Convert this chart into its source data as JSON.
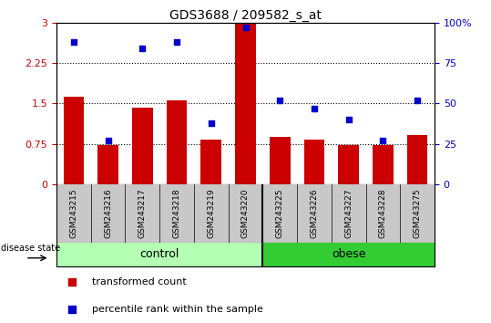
{
  "title": "GDS3688 / 209582_s_at",
  "samples": [
    "GSM243215",
    "GSM243216",
    "GSM243217",
    "GSM243218",
    "GSM243219",
    "GSM243220",
    "GSM243225",
    "GSM243226",
    "GSM243227",
    "GSM243228",
    "GSM243275"
  ],
  "bar_values": [
    1.62,
    0.72,
    1.42,
    1.55,
    0.82,
    2.98,
    0.88,
    0.82,
    0.72,
    0.72,
    0.92
  ],
  "scatter_values_pct": [
    88,
    27,
    84,
    88,
    38,
    97,
    52,
    47,
    40,
    27,
    52
  ],
  "bar_color": "#cc0000",
  "scatter_color": "#0000cc",
  "ylim_left": [
    0,
    3
  ],
  "ylim_right": [
    0,
    100
  ],
  "yticks_left": [
    0,
    0.75,
    1.5,
    2.25,
    3
  ],
  "yticks_left_labels": [
    "0",
    "0.75",
    "1.5",
    "2.25",
    "3"
  ],
  "yticks_right": [
    0,
    25,
    50,
    75,
    100
  ],
  "yticks_right_labels": [
    "0",
    "25",
    "50",
    "75",
    "100%"
  ],
  "n_control": 6,
  "n_obese": 5,
  "group_label_control": "control",
  "group_label_obese": "obese",
  "disease_state_label": "disease state",
  "legend_bar_label": "transformed count",
  "legend_scatter_label": "percentile rank within the sample",
  "tick_area_color": "#c8c8c8",
  "control_group_color": "#b3ffb3",
  "obese_group_color": "#33cc33",
  "left_tick_color": "#cc0000",
  "right_tick_color": "#0000cc"
}
